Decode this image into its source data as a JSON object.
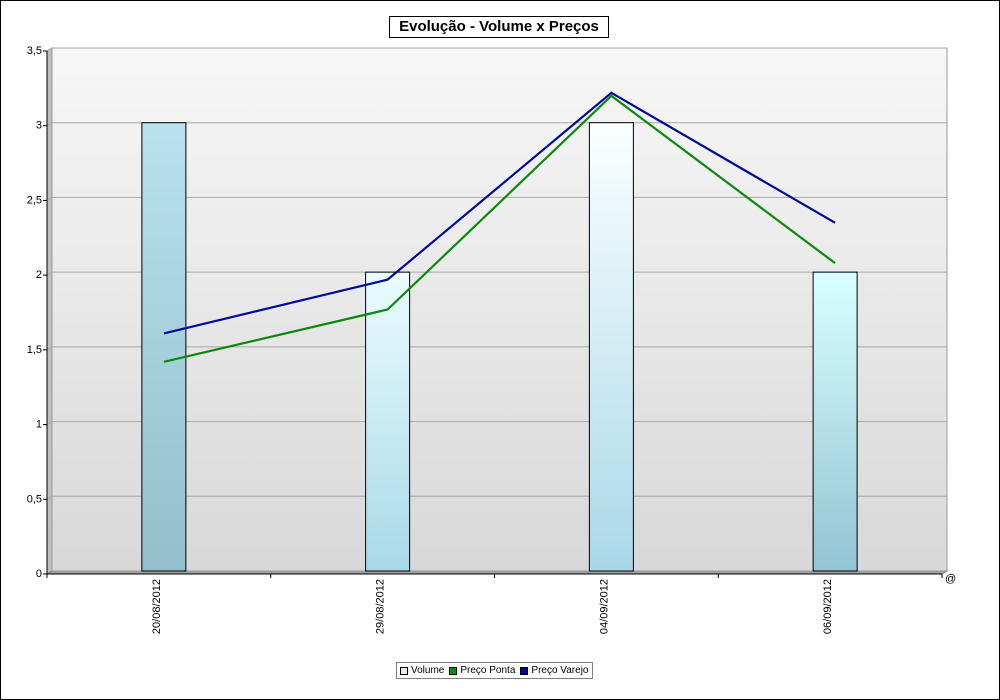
{
  "chart_data": {
    "type": "bar",
    "title": "Evolução - Volume x Preços",
    "categories": [
      "20/08/2012",
      "29/08/2012",
      "04/09/2012",
      "06/09/2012"
    ],
    "series": [
      {
        "name": "Volume",
        "kind": "bar",
        "values": [
          3,
          2,
          3,
          2
        ],
        "color": "#b0dcea"
      },
      {
        "name": "Preço Ponta",
        "kind": "line",
        "values": [
          1.4,
          1.75,
          3.18,
          2.06
        ],
        "color": "#0a8a0a"
      },
      {
        "name": "Preço Varejo",
        "kind": "line",
        "values": [
          1.59,
          1.95,
          3.2,
          2.33
        ],
        "color": "#000a96"
      }
    ],
    "ylim": [
      0,
      3.5
    ],
    "yticks": [
      "0",
      "0,5",
      "1",
      "1,5",
      "2",
      "2,5",
      "3",
      "3,5"
    ],
    "grid": true,
    "legend_position": "bottom-center",
    "corner_symbol": "@"
  }
}
